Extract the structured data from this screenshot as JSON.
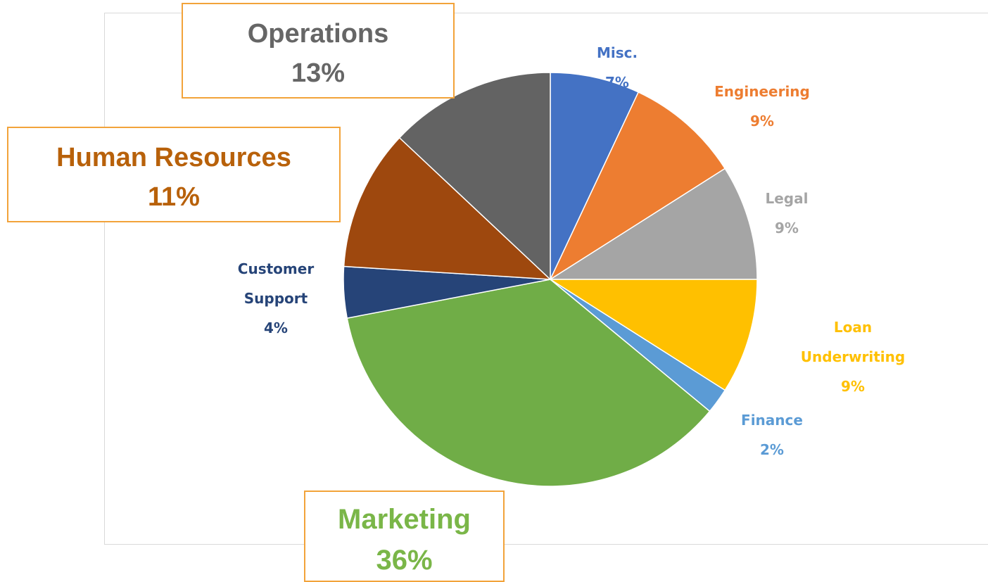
{
  "chart_data": {
    "type": "pie",
    "categories": [
      "Misc.",
      "Engineering",
      "Legal",
      "Loan Underwriting",
      "Finance",
      "Marketing",
      "Customer Support",
      "Human Resources",
      "Operations"
    ],
    "values": [
      7,
      9,
      9,
      9,
      2,
      36,
      4,
      11,
      13
    ],
    "value_labels": [
      "7%",
      "9%",
      "9%",
      "9%",
      "2%",
      "36%",
      "4%",
      "11%",
      "13%"
    ],
    "colors": [
      "#4472c4",
      "#ed7d31",
      "#a5a5a5",
      "#ffc000",
      "#5b9bd5",
      "#70ad47",
      "#264478",
      "#9e480e",
      "#636363"
    ]
  }
}
